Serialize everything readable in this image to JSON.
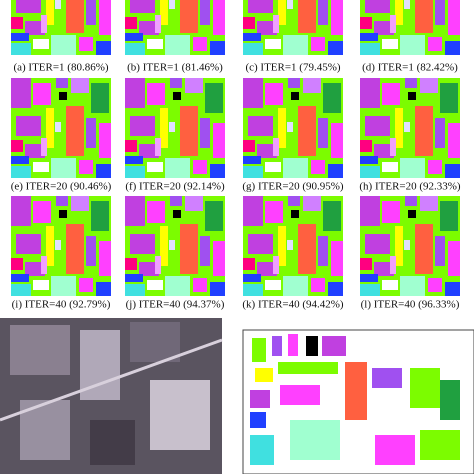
{
  "panels": [
    {
      "label": "(a) ITER=1 (80.86%)"
    },
    {
      "label": "(b) ITER=1 (81.46%)"
    },
    {
      "label": "(c) ITER=1 (79.45%)"
    },
    {
      "label": "(d) ITER=1 (82.42%)"
    },
    {
      "label": "(e) ITER=20 (90.46%)"
    },
    {
      "label": "(f) ITER=20 (92.14%)"
    },
    {
      "label": "(g) ITER=20 (90.95%)"
    },
    {
      "label": "(h) ITER=20 (92.33%)"
    },
    {
      "label": "(i) ITER=40 (92.79%)"
    },
    {
      "label": "(j) ITER=40 (94.37%)"
    },
    {
      "label": "(k) ITER=40 (94.42%)"
    },
    {
      "label": "(l) ITER=40 (96.33%)"
    }
  ]
}
